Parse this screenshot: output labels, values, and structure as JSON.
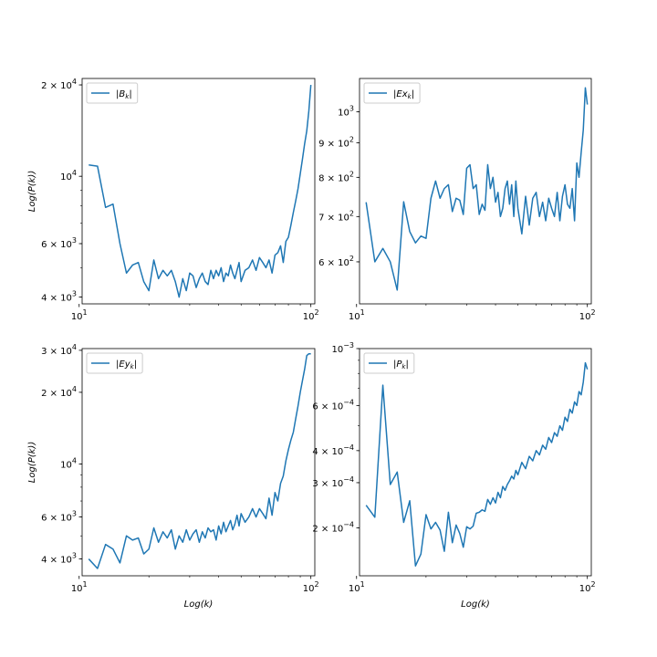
{
  "figure": {
    "background": "#ffffff",
    "line_color": "#1f77b4"
  },
  "chart_data": [
    {
      "type": "line",
      "title": "",
      "xlabel": "",
      "ylabel": "Log(P(k))",
      "xscale": "log",
      "yscale": "log",
      "xlim": [
        10.3,
        104
      ],
      "ylim": [
        3800,
        21000
      ],
      "legend": {
        "label": "|B_k|",
        "placement": "top-left"
      },
      "x_ticks": [
        {
          "value": 10,
          "base": "10",
          "exp": "1"
        },
        {
          "value": 100,
          "base": "10",
          "exp": "2"
        }
      ],
      "y_ticks": [
        {
          "value": 4000,
          "mantissa": "4",
          "exp": "3"
        },
        {
          "value": 6000,
          "mantissa": "6",
          "exp": "3"
        },
        {
          "value": 10000,
          "mantissa": "",
          "exp": "4"
        },
        {
          "value": 20000,
          "mantissa": "2",
          "exp": "4"
        }
      ],
      "series": [
        {
          "x": [
            11,
            12,
            13,
            14,
            15,
            16,
            17,
            18,
            19,
            20,
            21,
            22,
            23,
            24,
            25,
            26,
            27,
            28,
            29,
            30,
            31,
            32,
            33,
            34,
            35,
            36,
            37,
            38,
            39,
            40,
            41,
            42,
            43,
            44,
            45,
            46,
            47,
            48,
            49,
            50,
            52,
            54,
            56,
            58,
            60,
            62,
            64,
            66,
            68,
            70,
            72,
            74,
            76,
            78,
            80,
            82,
            84,
            86,
            88,
            90,
            92,
            94,
            96,
            98,
            100
          ],
          "values": [
            10900,
            10800,
            7900,
            8100,
            6000,
            4800,
            5100,
            5200,
            4500,
            4200,
            5300,
            4600,
            4900,
            4700,
            4900,
            4500,
            4000,
            4600,
            4200,
            4800,
            4700,
            4300,
            4600,
            4800,
            4500,
            4400,
            4900,
            4600,
            4900,
            4700,
            5000,
            4500,
            4800,
            4700,
            5100,
            4800,
            4600,
            4900,
            5200,
            4500,
            4900,
            5000,
            5300,
            4900,
            5400,
            5200,
            5000,
            5300,
            4800,
            5500,
            5600,
            5900,
            5200,
            6100,
            6300,
            6900,
            7600,
            8300,
            9100,
            10200,
            11400,
            12800,
            14100,
            16400,
            20000
          ]
        }
      ]
    },
    {
      "type": "line",
      "title": "",
      "xlabel": "",
      "ylabel": "",
      "xscale": "log",
      "yscale": "log",
      "xlim": [
        10.3,
        104
      ],
      "ylim": [
        520,
        1120
      ],
      "legend": {
        "label": "|Ex_k|",
        "placement": "top-left"
      },
      "x_ticks": [
        {
          "value": 10,
          "base": "10",
          "exp": "1"
        },
        {
          "value": 100,
          "base": "10",
          "exp": "2"
        }
      ],
      "y_ticks": [
        {
          "value": 600,
          "mantissa": "6",
          "exp": "2"
        },
        {
          "value": 700,
          "mantissa": "7",
          "exp": "2"
        },
        {
          "value": 800,
          "mantissa": "8",
          "exp": "2"
        },
        {
          "value": 900,
          "mantissa": "9",
          "exp": "2"
        },
        {
          "value": 1000,
          "mantissa": "",
          "exp": "3"
        }
      ],
      "series": [
        {
          "x": [
            11,
            12,
            13,
            14,
            15,
            16,
            17,
            18,
            19,
            20,
            21,
            22,
            23,
            24,
            25,
            26,
            27,
            28,
            29,
            30,
            31,
            32,
            33,
            34,
            35,
            36,
            37,
            38,
            39,
            40,
            41,
            42,
            43,
            44,
            45,
            46,
            47,
            48,
            49,
            50,
            52,
            54,
            56,
            58,
            60,
            62,
            64,
            66,
            68,
            70,
            72,
            74,
            76,
            78,
            80,
            82,
            84,
            86,
            88,
            90,
            92,
            94,
            96,
            98,
            100
          ],
          "values": [
            735,
            600,
            628,
            600,
            545,
            736,
            665,
            640,
            655,
            650,
            745,
            790,
            745,
            770,
            780,
            712,
            745,
            740,
            705,
            825,
            835,
            770,
            780,
            705,
            730,
            715,
            835,
            770,
            800,
            735,
            760,
            700,
            720,
            770,
            790,
            730,
            780,
            700,
            790,
            720,
            660,
            750,
            680,
            745,
            760,
            700,
            735,
            690,
            745,
            720,
            700,
            760,
            690,
            750,
            780,
            730,
            720,
            770,
            690,
            840,
            800,
            870,
            940,
            1085,
            1025
          ]
        }
      ]
    },
    {
      "type": "line",
      "title": "",
      "xlabel": "Log(k)",
      "ylabel": "Log(P(k))",
      "xscale": "log",
      "yscale": "log",
      "xlim": [
        10.3,
        104
      ],
      "ylim": [
        3400,
        30500
      ],
      "legend": {
        "label": "|Ey_k|",
        "placement": "top-left"
      },
      "x_ticks": [
        {
          "value": 10,
          "base": "10",
          "exp": "1"
        },
        {
          "value": 100,
          "base": "10",
          "exp": "2"
        }
      ],
      "y_ticks": [
        {
          "value": 4000,
          "mantissa": "4",
          "exp": "3"
        },
        {
          "value": 6000,
          "mantissa": "6",
          "exp": "3"
        },
        {
          "value": 10000,
          "mantissa": "",
          "exp": "4"
        },
        {
          "value": 20000,
          "mantissa": "2",
          "exp": "4"
        },
        {
          "value": 30000,
          "mantissa": "3",
          "exp": "4"
        }
      ],
      "series": [
        {
          "x": [
            11,
            12,
            13,
            14,
            15,
            16,
            17,
            18,
            19,
            20,
            21,
            22,
            23,
            24,
            25,
            26,
            27,
            28,
            29,
            30,
            31,
            32,
            33,
            34,
            35,
            36,
            37,
            38,
            39,
            40,
            41,
            42,
            43,
            44,
            45,
            46,
            47,
            48,
            49,
            50,
            52,
            54,
            56,
            58,
            60,
            62,
            64,
            66,
            68,
            70,
            72,
            74,
            76,
            78,
            80,
            82,
            84,
            86,
            88,
            90,
            92,
            94,
            96,
            98,
            100
          ],
          "values": [
            4000,
            3650,
            4600,
            4400,
            3850,
            5000,
            4800,
            4900,
            4200,
            4400,
            5400,
            4700,
            5200,
            4900,
            5300,
            4400,
            5000,
            4700,
            5300,
            4800,
            5100,
            5300,
            4700,
            5200,
            4900,
            5400,
            5200,
            5300,
            4800,
            5500,
            5100,
            5700,
            5200,
            5500,
            5800,
            5300,
            5600,
            6100,
            5500,
            6200,
            5700,
            6000,
            6500,
            6000,
            6500,
            6200,
            5900,
            7200,
            6100,
            7600,
            7000,
            8300,
            8900,
            10300,
            11500,
            12600,
            13600,
            15500,
            17500,
            20000,
            22400,
            25000,
            28500,
            29000,
            29000
          ]
        }
      ]
    },
    {
      "type": "line",
      "title": "",
      "xlabel": "Log(k)",
      "ylabel": "",
      "xscale": "log",
      "yscale": "log",
      "xlim": [
        10.3,
        104
      ],
      "ylim": [
        0.00013,
        0.001
      ],
      "legend": {
        "label": "|P_k|",
        "placement": "top-left"
      },
      "x_ticks": [
        {
          "value": 10,
          "base": "10",
          "exp": "1"
        },
        {
          "value": 100,
          "base": "10",
          "exp": "2"
        }
      ],
      "y_ticks": [
        {
          "value": 0.0002,
          "mantissa": "2",
          "exp": "−4"
        },
        {
          "value": 0.0003,
          "mantissa": "3",
          "exp": "−4"
        },
        {
          "value": 0.0004,
          "mantissa": "4",
          "exp": "−4"
        },
        {
          "value": 0.0006,
          "mantissa": "6",
          "exp": "−4"
        },
        {
          "value": 0.001,
          "mantissa": "",
          "exp": "−3"
        }
      ],
      "series": [
        {
          "x": [
            11,
            12,
            13,
            14,
            15,
            16,
            17,
            18,
            19,
            20,
            21,
            22,
            23,
            24,
            25,
            26,
            27,
            28,
            29,
            30,
            31,
            32,
            33,
            34,
            35,
            36,
            37,
            38,
            39,
            40,
            41,
            42,
            43,
            44,
            45,
            46,
            47,
            48,
            49,
            50,
            52,
            54,
            56,
            58,
            60,
            62,
            64,
            66,
            68,
            70,
            72,
            74,
            76,
            78,
            80,
            82,
            84,
            86,
            88,
            90,
            92,
            94,
            96,
            98,
            100
          ],
          "values": [
            0.000245,
            0.00022,
            0.00072,
            0.000295,
            0.00033,
            0.00021,
            0.000255,
            0.000142,
            0.000158,
            0.000225,
            0.000198,
            0.00021,
            0.000196,
            0.000162,
            0.00023,
            0.000175,
            0.000205,
            0.00019,
            0.000168,
            0.000202,
            0.000198,
            0.000203,
            0.000228,
            0.00023,
            0.000235,
            0.000232,
            0.000258,
            0.000247,
            0.000262,
            0.00025,
            0.000275,
            0.000262,
            0.00029,
            0.00028,
            0.000295,
            0.000305,
            0.000318,
            0.00031,
            0.000335,
            0.000322,
            0.00036,
            0.00034,
            0.00038,
            0.000365,
            0.0004,
            0.000385,
            0.00042,
            0.000405,
            0.00045,
            0.00043,
            0.00047,
            0.000455,
            0.0005,
            0.00048,
            0.00054,
            0.00052,
            0.00058,
            0.00056,
            0.00062,
            0.0006,
            0.00068,
            0.00066,
            0.00074,
            0.00088,
            0.00083
          ]
        }
      ]
    }
  ]
}
